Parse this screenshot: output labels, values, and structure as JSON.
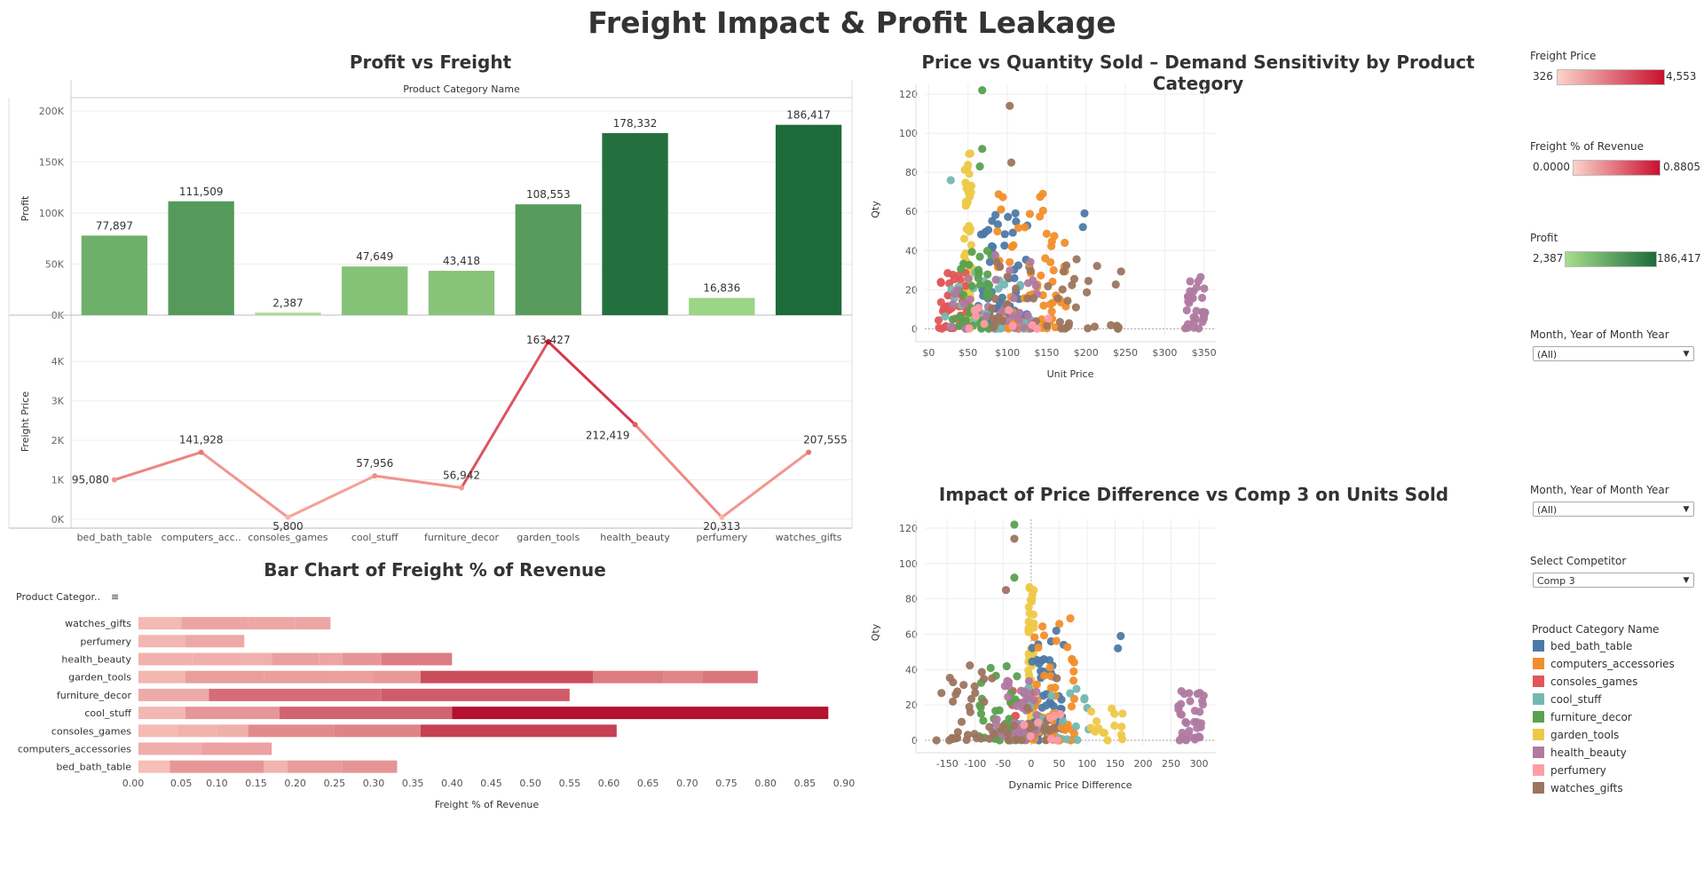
{
  "dashboard": {
    "title": "Freight Impact & Profit Leakage"
  },
  "categories": [
    "bed_bath_table",
    "computers_accessories",
    "consoles_games",
    "cool_stuff",
    "furniture_decor",
    "garden_tools",
    "health_beauty",
    "perfumery",
    "watches_gifts"
  ],
  "category_colors": {
    "bed_bath_table": "#4e79a7",
    "computers_accessories": "#f28e2b",
    "consoles_games": "#e15759",
    "cool_stuff": "#76b7b2",
    "furniture_decor": "#59a14f",
    "garden_tools": "#edc948",
    "health_beauty": "#b07aa1",
    "perfumery": "#ff9da7",
    "watches_gifts": "#9c755f"
  },
  "legends": {
    "freight_price": {
      "title": "Freight Price",
      "min": "326",
      "max": "4,553"
    },
    "freight_pct": {
      "title": "Freight % of Revenue",
      "min": "0.0000",
      "max": "0.8805"
    },
    "profit": {
      "title": "Profit",
      "min": "2,387",
      "max": "186,417"
    },
    "month_filter_1": {
      "title": "Month, Year of Month Year",
      "value": "(All)"
    },
    "month_filter_2": {
      "title": "Month, Year of Month Year",
      "value": "(All)"
    },
    "competitor_filter": {
      "title": "Select Competitor",
      "value": "Comp 3"
    },
    "category_legend": {
      "title": "Product Category Name"
    }
  },
  "chart_data": [
    {
      "type": "bar",
      "title": "Profit vs Freight",
      "header": "Product Category Name",
      "ylabel": "Profit",
      "categories": [
        "bed_bath_table",
        "computers_acc..",
        "consoles_games",
        "cool_stuff",
        "furniture_decor",
        "garden_tools",
        "health_beauty",
        "perfumery",
        "watches_gifts"
      ],
      "values": [
        77897,
        111509,
        2387,
        47649,
        43418,
        108553,
        178332,
        16836,
        186417
      ],
      "value_labels": [
        "77,897",
        "111,509",
        "2,387",
        "47,649",
        "43,418",
        "108,553",
        "178,332",
        "16,836",
        "186,417"
      ],
      "yticks": [
        "0K",
        "50K",
        "100K",
        "150K",
        "200K"
      ],
      "ylim": [
        0,
        200000
      ]
    },
    {
      "type": "line",
      "ylabel": "Freight Price",
      "categories": [
        "bed_bath_table",
        "computers_acc..",
        "consoles_games",
        "cool_stuff",
        "furniture_decor",
        "garden_tools",
        "health_beauty",
        "perfumery",
        "watches_gifts"
      ],
      "values": [
        1000,
        1700,
        50,
        1100,
        800,
        4500,
        2400,
        50,
        1700
      ],
      "point_labels": [
        "95,080",
        "141,928",
        "5,800",
        "57,956",
        "56,942",
        "163,427",
        "212,419",
        "20,313",
        "207,555"
      ],
      "yticks": [
        "0K",
        "1K",
        "2K",
        "3K",
        "4K"
      ],
      "ylim": [
        0,
        4500
      ]
    },
    {
      "type": "bar",
      "title": "Bar Chart of Freight % of Revenue",
      "header": "Product Categor..",
      "xlabel": "Freight % of Revenue",
      "categories": [
        "watches_gifts",
        "perfumery",
        "health_beauty",
        "garden_tools",
        "furniture_decor",
        "cool_stuff",
        "consoles_games",
        "computers_accessories",
        "bed_bath_table"
      ],
      "segments": [
        [
          0.055,
          0.14,
          0.2,
          0.245
        ],
        [
          0.06,
          0.135
        ],
        [
          0.07,
          0.13,
          0.17,
          0.23,
          0.26,
          0.31,
          0.4
        ],
        [
          0.06,
          0.16,
          0.24,
          0.3,
          0.36,
          0.58,
          0.67,
          0.72,
          0.79
        ],
        [
          0.09,
          0.31,
          0.55
        ],
        [
          0.06,
          0.18,
          0.4,
          0.88
        ],
        [
          0.05,
          0.1,
          0.14,
          0.25,
          0.36,
          0.61
        ],
        [
          0.08,
          0.17
        ],
        [
          0.04,
          0.16,
          0.19,
          0.26,
          0.33
        ]
      ],
      "xticks": [
        "0.00",
        "0.05",
        "0.10",
        "0.15",
        "0.20",
        "0.25",
        "0.30",
        "0.35",
        "0.40",
        "0.45",
        "0.50",
        "0.55",
        "0.60",
        "0.65",
        "0.70",
        "0.75",
        "0.80",
        "0.85",
        "0.90"
      ],
      "xlim": [
        0,
        0.9
      ]
    },
    {
      "type": "scatter",
      "title": "Price vs Quantity Sold – Demand Sensitivity by Product Category",
      "xlabel": "Unit Price",
      "ylabel": "Qty",
      "xticks": [
        "$0",
        "$50",
        "$100",
        "$150",
        "$200",
        "$250",
        "$300",
        "$350"
      ],
      "yticks": [
        "0",
        "20",
        "40",
        "60",
        "80",
        "100",
        "120"
      ],
      "xlim": [
        -5,
        365
      ],
      "ylim": [
        -3,
        125
      ]
    },
    {
      "type": "scatter",
      "title": "Impact of Price Difference vs Comp 3 on Units Sold",
      "xlabel": "Dynamic Price Difference",
      "ylabel": "Qty",
      "xticks": [
        "-150",
        "-100",
        "-50",
        "0",
        "50",
        "100",
        "150",
        "200",
        "250",
        "300"
      ],
      "yticks": [
        "0",
        "20",
        "40",
        "60",
        "80",
        "100",
        "120"
      ],
      "xlim": [
        -190,
        330
      ],
      "ylim": [
        -3,
        125
      ]
    }
  ]
}
